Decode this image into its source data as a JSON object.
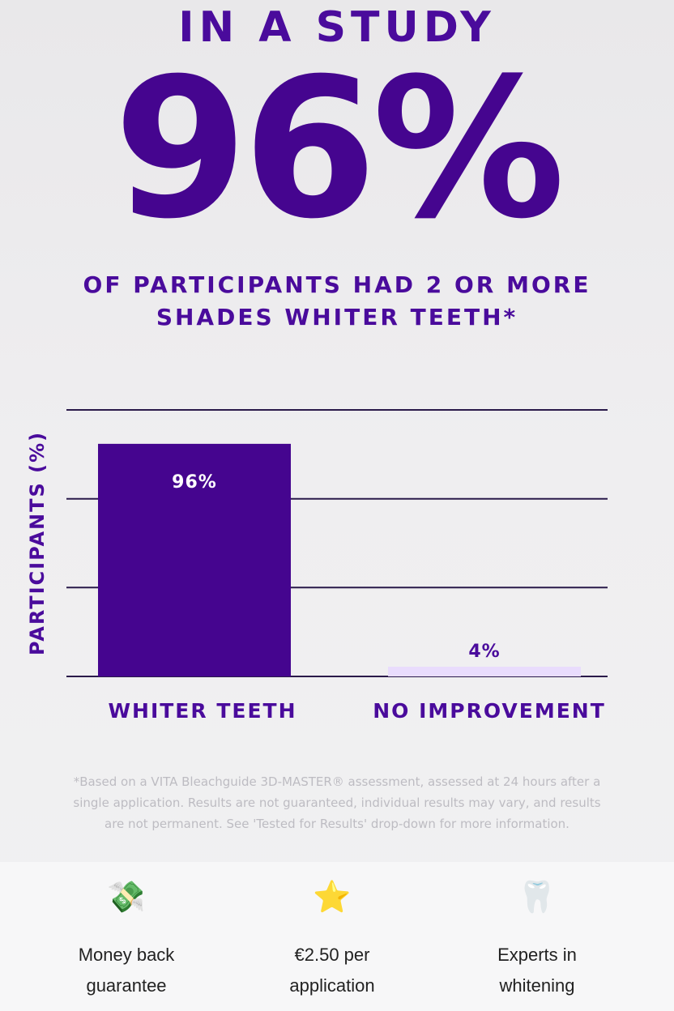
{
  "hero": {
    "headline": "IN A STUDY",
    "big_number": "96%",
    "subheadline": "OF PARTICIPANTS HAD 2 OR MORE SHADES WHITER TEETH*"
  },
  "chart_data": {
    "type": "bar",
    "ylabel": "PARTICIPANTS (%)",
    "categories": [
      "WHITER TEETH",
      "NO IMPROVEMENT"
    ],
    "values": [
      96,
      4
    ],
    "data_labels": [
      "96%",
      "4%"
    ],
    "colors": [
      "#45058f",
      "#e9dcfd"
    ],
    "label_colors": [
      "#ffffff",
      "#4a0b9c"
    ],
    "ylim": [
      0,
      110
    ],
    "gridlines": [
      0,
      36.7,
      73.3,
      110
    ],
    "grid": true
  },
  "footnote": "*Based on a VITA Bleachguide 3D-MASTER® assessment, assessed at 24 hours after a single application. Results are not guaranteed, individual results may vary, and results are not permanent. See 'Tested for Results' drop-down for more information.",
  "features": [
    {
      "icon": "money-with-wings-icon",
      "glyph": "💸",
      "label": "Money back\nguarantee"
    },
    {
      "icon": "star-icon",
      "glyph": "⭐",
      "label": "€2.50 per\napplication"
    },
    {
      "icon": "tooth-icon",
      "glyph": "🦷",
      "label": "Experts in\nwhitening"
    }
  ],
  "colors": {
    "brand_purple": "#45058f",
    "light_purple": "#e9dcfd"
  }
}
